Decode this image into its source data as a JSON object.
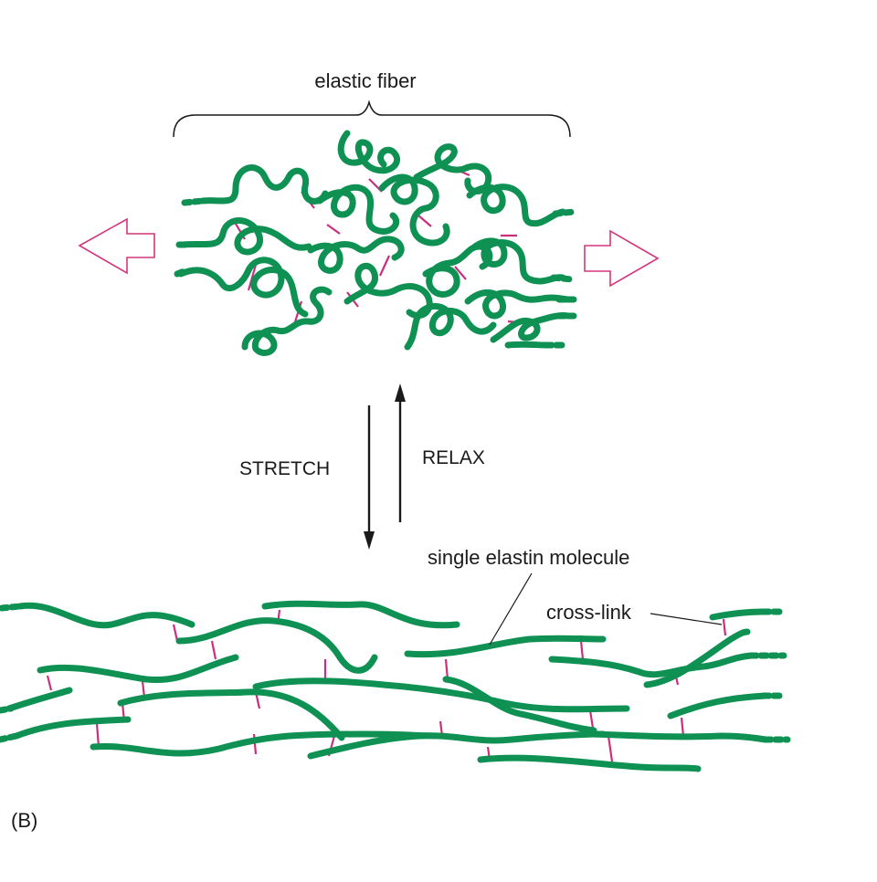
{
  "labels": {
    "elastic_fiber": "elastic fiber",
    "stretch": "STRETCH",
    "relax": "RELAX",
    "single_molecule": "single elastin molecule",
    "cross_link": "cross-link",
    "panel": "(B)"
  },
  "colors": {
    "fiber": "#0e9153",
    "crosslink": "#c8307f",
    "arrow_outline": "#d2377e",
    "text": "#1a1a1a"
  }
}
